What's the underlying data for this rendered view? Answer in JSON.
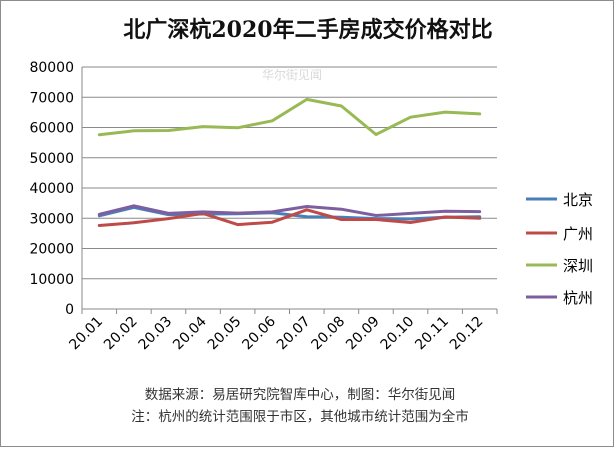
{
  "title": "北广深杭2020年二手房成交价格对比",
  "watermark": "华尔街见闻",
  "source_note": "数据来源：易居研究院智库中心，制图：华尔街见闻",
  "scope_note": "注：杭州的统计范围限于市区，其他城市统计范围为全市",
  "chart_data": {
    "type": "line",
    "title": "北广深杭2020年二手房成交价格对比",
    "xlabel": "",
    "ylabel": "",
    "categories": [
      "20.01",
      "20.02",
      "20.03",
      "20.04",
      "20.05",
      "20.06",
      "20.07",
      "20.08",
      "20.09",
      "20.10",
      "20.11",
      "20.12"
    ],
    "ylim": [
      0,
      80000
    ],
    "yticks": [
      0,
      10000,
      20000,
      30000,
      40000,
      50000,
      60000,
      70000,
      80000
    ],
    "grid": true,
    "legend_position": "right",
    "series": [
      {
        "name": "北京",
        "color": "#4a7ebb",
        "values": [
          30800,
          33600,
          31200,
          31400,
          31500,
          31800,
          30500,
          30300,
          29900,
          29800,
          30300,
          30500
        ]
      },
      {
        "name": "广州",
        "color": "#be4b48",
        "values": [
          27600,
          28500,
          29900,
          31600,
          27900,
          28700,
          32800,
          29600,
          29600,
          28600,
          30400,
          30000
        ]
      },
      {
        "name": "深圳",
        "color": "#98b954",
        "values": [
          57600,
          58900,
          59000,
          60300,
          59900,
          62200,
          69300,
          67100,
          57700,
          63400,
          65100,
          64500
        ]
      },
      {
        "name": "杭州",
        "color": "#7d5fa0",
        "values": [
          31300,
          34100,
          31600,
          32100,
          31700,
          32100,
          33900,
          33000,
          30900,
          31600,
          32300,
          32200
        ]
      }
    ]
  }
}
